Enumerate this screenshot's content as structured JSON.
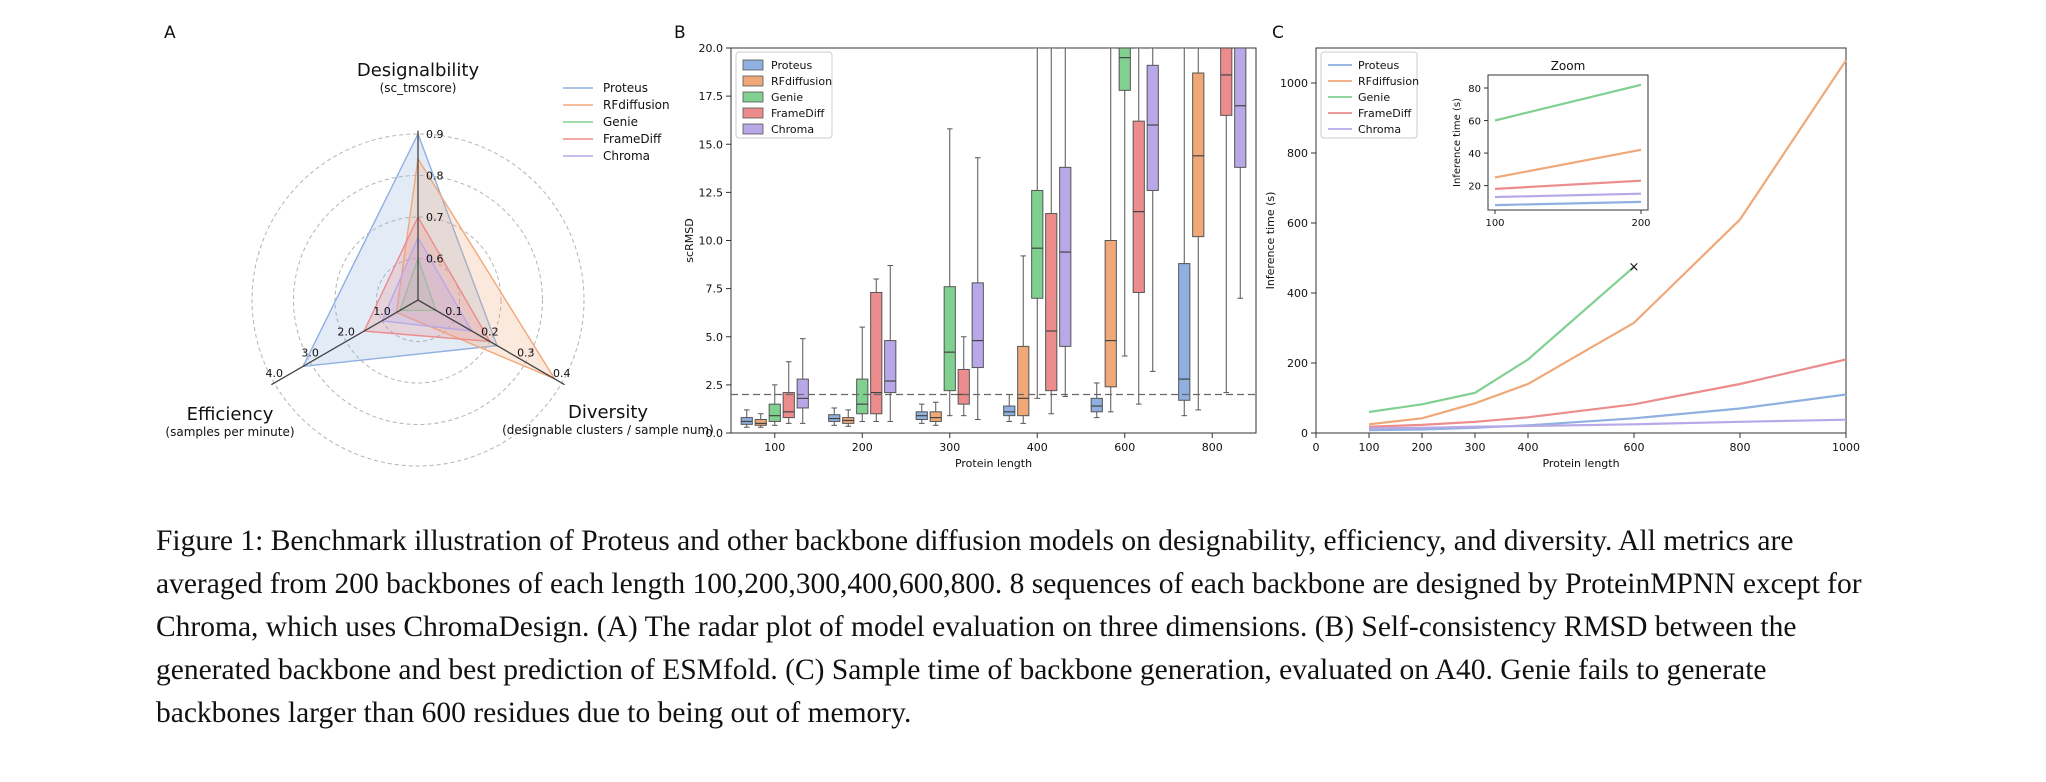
{
  "panel_labels": [
    "A",
    "B",
    "C"
  ],
  "caption": "Figure 1: Benchmark illustration of Proteus and other backbone diffusion models on designability, efficiency, and diversity. All metrics are averaged from 200 backbones of each length 100,200,300,400,600,800. 8 sequences of each backbone are designed by ProteinMPNN except for Chroma, which uses ChromaDesign. (A) The radar plot of model evaluation on three dimensions. (B) Self-consistency RMSD between the generated backbone and best prediction of ESMfold. (C) Sample time of backbone generation, evaluated on A40. Genie fails to generate backbones larger than 600 residues due to being out of memory.",
  "colors": {
    "Proteus": "#8fb0e0",
    "RFdiffusion": "#f0a878",
    "Genie": "#80d090",
    "FrameDiff": "#ec8c8c",
    "Chroma": "#b8a8e8"
  },
  "chart_data": [
    {
      "type": "radar",
      "axes": [
        {
          "name": "Designalbility",
          "subtitle": "(sc_tmscore)",
          "ticks": [
            "0.6",
            "0.7",
            "0.8",
            "0.9"
          ]
        },
        {
          "name": "Diversity",
          "subtitle": "(designable clusters / sample num)",
          "ticks": [
            "0.1",
            "0.2",
            "0.3",
            "0.4"
          ]
        },
        {
          "name": "Efficiency",
          "subtitle": "(samples per minute)",
          "ticks": [
            "1.0",
            "2.0",
            "3.0",
            "4.0"
          ]
        }
      ],
      "legend_position": "top-right",
      "series": [
        {
          "name": "Proteus",
          "values": [
            0.9,
            0.22,
            3.2
          ]
        },
        {
          "name": "RFdiffusion",
          "values": [
            0.84,
            0.38,
            0.6
          ]
        },
        {
          "name": "Genie",
          "values": [
            0.6,
            0.05,
            0.5
          ]
        },
        {
          "name": "FrameDiff",
          "values": [
            0.7,
            0.2,
            1.5
          ]
        },
        {
          "name": "Chroma",
          "values": [
            0.65,
            0.15,
            1.0
          ]
        }
      ]
    },
    {
      "type": "box",
      "xlabel": "Protein length",
      "ylabel": "scRMSD",
      "categories": [
        "100",
        "200",
        "300",
        "400",
        "600",
        "800"
      ],
      "ylim": [
        0,
        20
      ],
      "yticks": [
        "0.0",
        "2.5",
        "5.0",
        "7.5",
        "10.0",
        "12.5",
        "15.0",
        "17.5",
        "20.0"
      ],
      "reference_line": 2.0,
      "legend_position": "top-left",
      "series": [
        {
          "name": "Proteus",
          "boxes": [
            [
              0.3,
              0.45,
              0.6,
              0.8,
              1.2
            ],
            [
              0.4,
              0.6,
              0.75,
              0.95,
              1.3
            ],
            [
              0.5,
              0.7,
              0.9,
              1.1,
              1.5
            ],
            [
              0.6,
              0.9,
              1.1,
              1.4,
              2.0
            ],
            [
              0.8,
              1.1,
              1.4,
              1.8,
              2.6
            ],
            [
              0.9,
              1.7,
              2.8,
              8.8,
              20
            ]
          ]
        },
        {
          "name": "RFdiffusion",
          "boxes": [
            [
              0.3,
              0.4,
              0.5,
              0.7,
              1.0
            ],
            [
              0.35,
              0.5,
              0.65,
              0.8,
              1.2
            ],
            [
              0.4,
              0.6,
              0.8,
              1.1,
              1.6
            ],
            [
              0.5,
              0.9,
              1.8,
              4.5,
              9.2
            ],
            [
              1.1,
              2.4,
              4.8,
              10.0,
              20
            ],
            [
              1.2,
              10.2,
              14.4,
              18.7,
              20
            ]
          ]
        },
        {
          "name": "Genie",
          "boxes": [
            [
              0.4,
              0.6,
              0.9,
              1.5,
              2.5
            ],
            [
              0.6,
              1.0,
              1.5,
              2.8,
              5.5
            ],
            [
              0.9,
              2.2,
              4.2,
              7.6,
              15.8
            ],
            [
              1.8,
              7.0,
              9.6,
              12.6,
              20
            ],
            [
              4.0,
              17.8,
              19.5,
              20,
              20
            ],
            null
          ]
        },
        {
          "name": "FrameDiff",
          "boxes": [
            [
              0.5,
              0.8,
              1.1,
              2.1,
              3.7
            ],
            [
              0.6,
              1.0,
              2.1,
              7.3,
              8.0
            ],
            [
              0.9,
              1.5,
              2.0,
              3.3,
              5.0
            ],
            [
              1.0,
              2.2,
              5.3,
              11.4,
              20
            ],
            [
              1.5,
              7.3,
              11.5,
              16.2,
              20
            ],
            [
              2.1,
              16.5,
              18.6,
              20,
              20
            ]
          ]
        },
        {
          "name": "Chroma",
          "boxes": [
            [
              0.5,
              1.3,
              1.8,
              2.8,
              4.9
            ],
            [
              0.6,
              2.1,
              2.7,
              4.8,
              8.7
            ],
            [
              0.7,
              3.4,
              4.8,
              7.8,
              14.3
            ],
            [
              1.9,
              4.5,
              9.4,
              13.8,
              20
            ],
            [
              3.2,
              12.6,
              16.0,
              19.1,
              20
            ],
            [
              7.0,
              13.8,
              17.0,
              20,
              20
            ]
          ]
        }
      ]
    },
    {
      "type": "line",
      "xlabel": "Protein length",
      "ylabel": "Inference time (s)",
      "xlim": [
        0,
        1000
      ],
      "ylim": [
        0,
        1100
      ],
      "xticks": [
        "0",
        "100",
        "200",
        "300",
        "400",
        "600",
        "800",
        "1000"
      ],
      "yticks": [
        "0",
        "200",
        "400",
        "600",
        "800",
        "1000"
      ],
      "legend_position": "top-left",
      "series": [
        {
          "name": "Proteus",
          "x": [
            100,
            200,
            300,
            400,
            600,
            800,
            1000
          ],
          "y": [
            8,
            10,
            15,
            22,
            42,
            70,
            110
          ]
        },
        {
          "name": "RFdiffusion",
          "x": [
            100,
            200,
            300,
            400,
            600,
            800,
            1000
          ],
          "y": [
            25,
            42,
            85,
            140,
            315,
            610,
            1065
          ]
        },
        {
          "name": "Genie",
          "x": [
            100,
            200,
            300,
            400,
            600
          ],
          "y": [
            60,
            82,
            115,
            210,
            475
          ]
        },
        {
          "name": "FrameDiff",
          "x": [
            100,
            200,
            300,
            400,
            600,
            800,
            1000
          ],
          "y": [
            18,
            23,
            32,
            45,
            82,
            140,
            210
          ]
        },
        {
          "name": "Chroma",
          "x": [
            100,
            200,
            300,
            400,
            600,
            800,
            1000
          ],
          "y": [
            13,
            15,
            18,
            20,
            25,
            32,
            38
          ]
        }
      ],
      "failure_marker": {
        "series": "Genie",
        "x": 600,
        "y": 475,
        "symbol": "×"
      },
      "inset": {
        "title": "Zoom",
        "ylabel": "Inference time (s)",
        "xlim": [
          100,
          200
        ],
        "ylim": [
          5,
          88
        ],
        "xticks": [
          "100",
          "200"
        ],
        "yticks": [
          "20",
          "40",
          "60",
          "80"
        ],
        "series": [
          {
            "name": "Proteus",
            "x": [
              100,
              200
            ],
            "y": [
              8,
              10
            ]
          },
          {
            "name": "RFdiffusion",
            "x": [
              100,
              200
            ],
            "y": [
              25,
              42
            ]
          },
          {
            "name": "Genie",
            "x": [
              100,
              200
            ],
            "y": [
              60,
              82
            ]
          },
          {
            "name": "FrameDiff",
            "x": [
              100,
              200
            ],
            "y": [
              18,
              23
            ]
          },
          {
            "name": "Chroma",
            "x": [
              100,
              200
            ],
            "y": [
              13,
              15
            ]
          }
        ]
      }
    }
  ]
}
